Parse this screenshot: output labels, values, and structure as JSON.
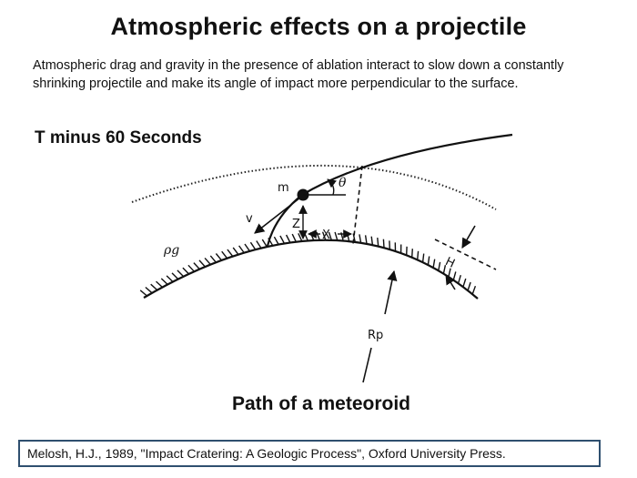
{
  "slide": {
    "title": "Atmospheric effects on a projectile",
    "intro": "Atmospheric drag and gravity in the presence of ablation interact to slow down a constantly shrinking projectile and make its angle of impact more perpendicular to the surface.",
    "timer_label": "T minus 60 Seconds",
    "caption": "Path of a meteoroid",
    "citation": "Melosh, H.J., 1989, \"Impact Cratering: A Geologic Process\", Oxford University Press."
  },
  "diagram": {
    "labels": {
      "mass": "m",
      "angle": "θ",
      "velocity": "v",
      "height": "Z",
      "distance": "X",
      "density": "ρg",
      "scale_height": "H",
      "radius": "Rp"
    }
  }
}
